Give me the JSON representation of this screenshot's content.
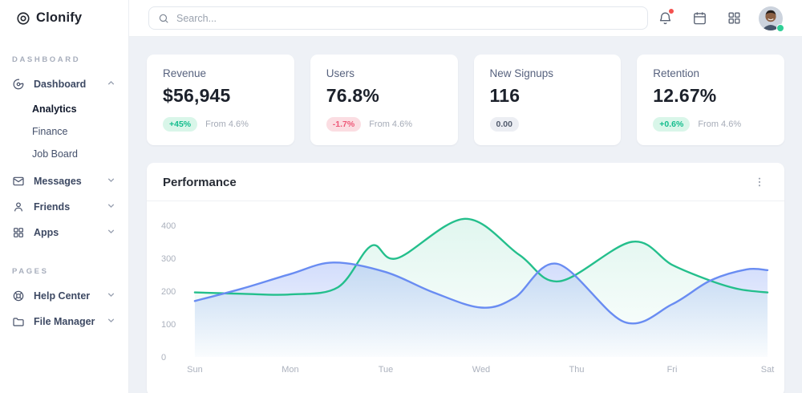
{
  "app": {
    "name": "Clonify"
  },
  "sidebar": {
    "logo_text": "Clonify",
    "section_dashboard": "DASHBOARD",
    "section_pages": "PAGES",
    "items": {
      "dashboard": "Dashboard",
      "analytics": "Analytics",
      "finance": "Finance",
      "job_board": "Job Board",
      "messages": "Messages",
      "friends": "Friends",
      "apps": "Apps",
      "help_center": "Help Center",
      "file_manager": "File Manager"
    }
  },
  "topbar": {
    "search_placeholder": "Search..."
  },
  "stats": [
    {
      "title": "Revenue",
      "value": "$56,945",
      "badge": "+45%",
      "trend": "up",
      "note": "From 4.6%"
    },
    {
      "title": "Users",
      "value": "76.8%",
      "badge": "-1.7%",
      "trend": "down",
      "note": "From 4.6%"
    },
    {
      "title": "New Signups",
      "value": "116",
      "badge": "0.00",
      "trend": "neutral",
      "note": ""
    },
    {
      "title": "Retention",
      "value": "12.67%",
      "badge": "+0.6%",
      "trend": "up",
      "note": "From 4.6%"
    }
  ],
  "colors": {
    "positive": "#14bd8d",
    "negative": "#ee5878",
    "notification_dot": "#f4514e",
    "online_dot": "#2fcf96"
  },
  "chart_data": {
    "type": "area",
    "title": "Performance",
    "categories": [
      "Sun",
      "Mon",
      "Tue",
      "Wed",
      "Thu",
      "Fri",
      "Sat"
    ],
    "y_ticks": [
      0,
      100,
      200,
      300,
      400
    ],
    "ylim": [
      0,
      450
    ],
    "grid": false,
    "legend": "none",
    "series": [
      {
        "name": "green",
        "color": "#24bf8c",
        "points": [
          [
            0,
            196
          ],
          [
            0.5,
            192
          ],
          [
            1,
            190
          ],
          [
            1.5,
            212
          ],
          [
            1.85,
            338
          ],
          [
            2.12,
            300
          ],
          [
            2.83,
            420
          ],
          [
            3.4,
            310
          ],
          [
            3.82,
            230
          ],
          [
            4.58,
            350
          ],
          [
            5.0,
            280
          ],
          [
            5.4,
            232
          ],
          [
            5.7,
            206
          ],
          [
            6,
            196
          ]
        ]
      },
      {
        "name": "blue",
        "color": "#698cf2",
        "points": [
          [
            0,
            170
          ],
          [
            0.5,
            208
          ],
          [
            1,
            252
          ],
          [
            1.45,
            287
          ],
          [
            2,
            258
          ],
          [
            2.5,
            196
          ],
          [
            3,
            150
          ],
          [
            3.35,
            180
          ],
          [
            3.8,
            283
          ],
          [
            4.5,
            106
          ],
          [
            5.0,
            160
          ],
          [
            5.4,
            232
          ],
          [
            5.78,
            266
          ],
          [
            6,
            264
          ]
        ]
      }
    ]
  }
}
